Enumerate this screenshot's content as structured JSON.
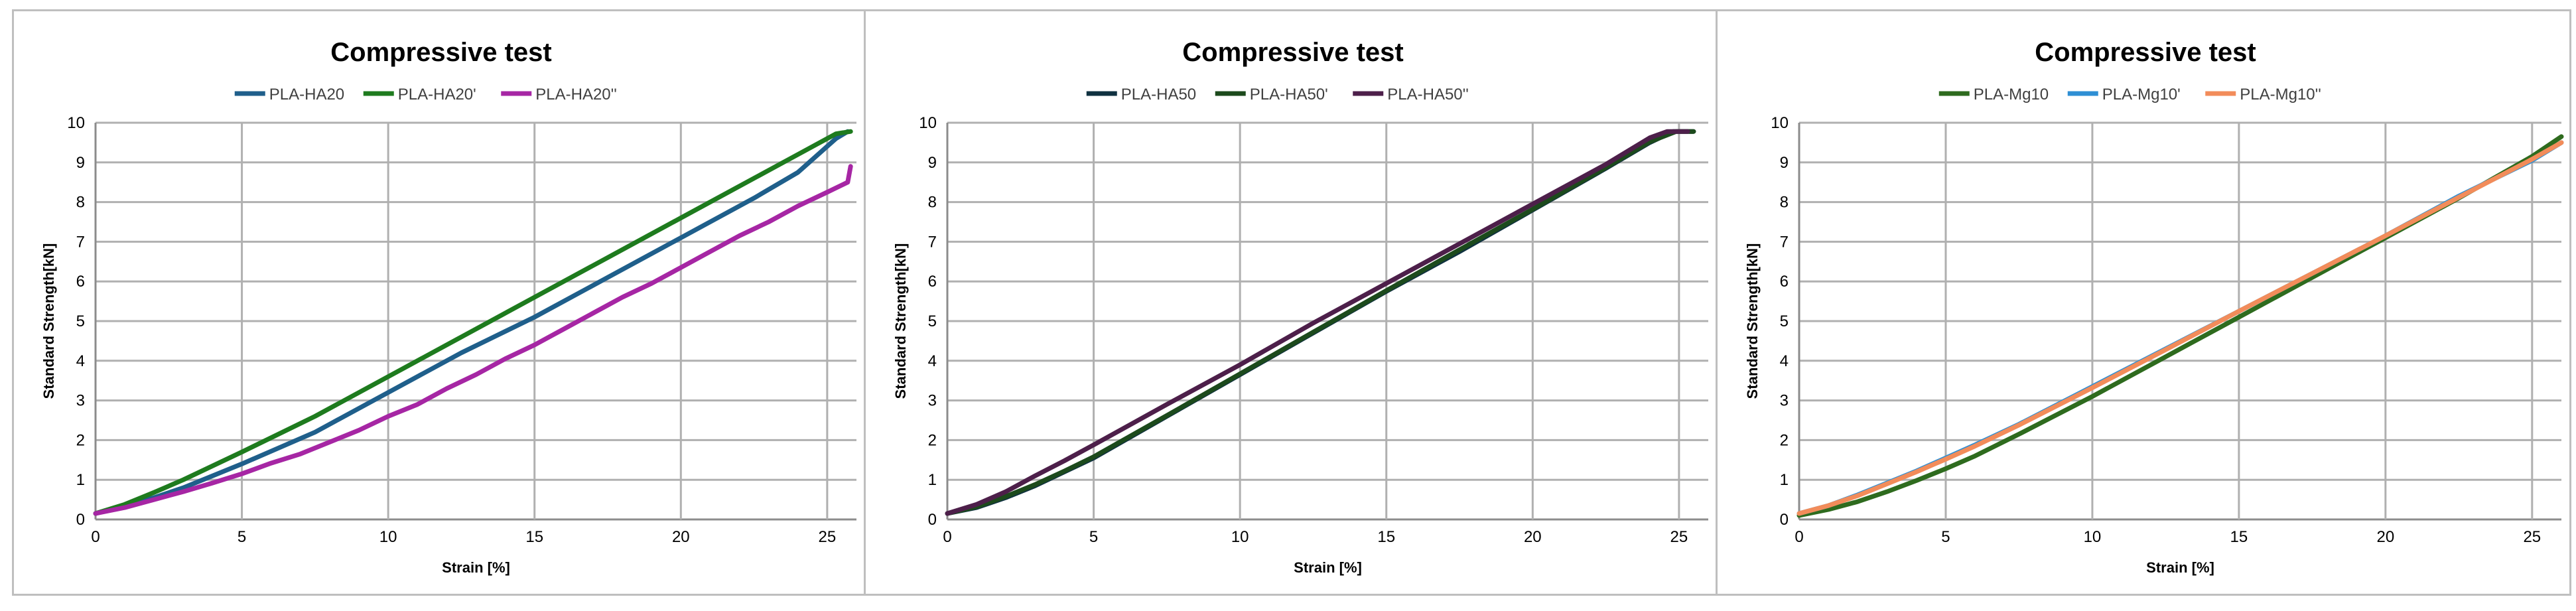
{
  "chart_data": [
    {
      "type": "line",
      "title": "Compressive test",
      "xlabel": "Strain [%]",
      "ylabel": "Standard Strength[kN]",
      "xlim": [
        0,
        26
      ],
      "ylim": [
        0,
        10
      ],
      "xticks": [
        0,
        5,
        10,
        15,
        20,
        25
      ],
      "yticks": [
        0,
        1,
        2,
        3,
        4,
        5,
        6,
        7,
        8,
        9,
        10
      ],
      "grid": true,
      "legend_position": "top",
      "series": [
        {
          "name": "PLA-HA20",
          "color": "#1f5f8b",
          "x": [
            0,
            1,
            2,
            3,
            5,
            7.5,
            10,
            12.5,
            15,
            17.5,
            20,
            22.5,
            24,
            25.3,
            25.7
          ],
          "y": [
            0.15,
            0.33,
            0.55,
            0.8,
            1.4,
            2.2,
            3.2,
            4.2,
            5.1,
            6.1,
            7.1,
            8.1,
            8.75,
            9.6,
            9.78
          ]
        },
        {
          "name": "PLA-HA20'",
          "color": "#1e7b1e",
          "x": [
            0,
            1,
            2,
            3,
            5,
            7.5,
            10,
            12.5,
            15,
            17.5,
            20,
            22.5,
            24,
            25.3,
            25.8
          ],
          "y": [
            0.15,
            0.38,
            0.68,
            1.0,
            1.7,
            2.6,
            3.6,
            4.6,
            5.6,
            6.6,
            7.6,
            8.6,
            9.2,
            9.72,
            9.78
          ]
        },
        {
          "name": "PLA-HA20''",
          "color": "#a626a4",
          "x": [
            0,
            1,
            2,
            3,
            4,
            5,
            6,
            7,
            8,
            9,
            10,
            11,
            12,
            13,
            14,
            15,
            16,
            17,
            18,
            19,
            20,
            21,
            22,
            23,
            24,
            25,
            25.7,
            25.75,
            25.8
          ],
          "y": [
            0.15,
            0.3,
            0.5,
            0.7,
            0.92,
            1.15,
            1.42,
            1.65,
            1.95,
            2.25,
            2.6,
            2.9,
            3.3,
            3.65,
            4.05,
            4.4,
            4.8,
            5.2,
            5.6,
            5.95,
            6.35,
            6.75,
            7.15,
            7.5,
            7.9,
            8.25,
            8.5,
            8.7,
            8.9
          ]
        }
      ]
    },
    {
      "type": "line",
      "title": "Compressive test",
      "xlabel": "Strain [%]",
      "ylabel": "Standard Strength[kN]",
      "xlim": [
        0,
        26
      ],
      "ylim": [
        0,
        10
      ],
      "xticks": [
        0,
        5,
        10,
        15,
        20,
        25
      ],
      "yticks": [
        0,
        1,
        2,
        3,
        4,
        5,
        6,
        7,
        8,
        9,
        10
      ],
      "grid": true,
      "legend_position": "top",
      "series": [
        {
          "name": "PLA-HA50",
          "color": "#0f3140",
          "x": [
            0,
            1,
            2,
            3,
            4,
            5,
            7.5,
            10,
            12.5,
            15,
            17.5,
            20,
            22.5,
            24,
            24.8,
            25.5
          ],
          "y": [
            0.15,
            0.3,
            0.55,
            0.85,
            1.2,
            1.55,
            2.6,
            3.65,
            4.7,
            5.75,
            6.75,
            7.8,
            8.85,
            9.5,
            9.78,
            9.78
          ]
        },
        {
          "name": "PLA-HA50'",
          "color": "#1c4a1c",
          "x": [
            0,
            1,
            2,
            3,
            4,
            5,
            7.5,
            10,
            12.5,
            15,
            17.5,
            20,
            22.5,
            24,
            24.9,
            25.5
          ],
          "y": [
            0.15,
            0.32,
            0.58,
            0.88,
            1.22,
            1.58,
            2.62,
            3.67,
            4.72,
            5.77,
            6.8,
            7.82,
            8.87,
            9.52,
            9.78,
            9.78
          ]
        },
        {
          "name": "PLA-HA50''",
          "color": "#4d1f4a",
          "x": [
            0,
            1,
            2,
            3,
            4,
            5,
            7.5,
            10,
            12.5,
            15,
            17.5,
            20,
            22.5,
            24,
            24.6,
            25.3
          ],
          "y": [
            0.15,
            0.38,
            0.7,
            1.1,
            1.48,
            1.88,
            2.9,
            3.9,
            4.95,
            5.95,
            6.95,
            7.95,
            8.95,
            9.62,
            9.78,
            9.78
          ]
        }
      ]
    },
    {
      "type": "line",
      "title": "Compressive test",
      "xlabel": "Strain [%]",
      "ylabel": "Standard Strength[kN]",
      "xlim": [
        0,
        26
      ],
      "ylim": [
        0,
        10
      ],
      "xticks": [
        0,
        5,
        10,
        15,
        20,
        25
      ],
      "yticks": [
        0,
        1,
        2,
        3,
        4,
        5,
        6,
        7,
        8,
        9,
        10
      ],
      "grid": true,
      "legend_position": "top",
      "series": [
        {
          "name": "PLA-Mg10",
          "color": "#2e6b1e",
          "x": [
            0,
            1,
            2,
            3,
            4,
            5,
            6,
            7.5,
            10,
            12.5,
            15,
            17.5,
            20,
            22.5,
            25,
            26
          ],
          "y": [
            0.1,
            0.25,
            0.45,
            0.7,
            0.98,
            1.28,
            1.6,
            2.15,
            3.1,
            4.1,
            5.1,
            6.1,
            7.1,
            8.1,
            9.15,
            9.65
          ]
        },
        {
          "name": "PLA-Mg10'",
          "color": "#2e8fd4",
          "x": [
            0,
            1,
            2,
            3,
            4,
            5,
            6,
            7.5,
            10,
            12.5,
            15,
            17.5,
            20,
            22.5,
            25,
            26
          ],
          "y": [
            0.15,
            0.35,
            0.62,
            0.92,
            1.22,
            1.55,
            1.88,
            2.4,
            3.35,
            4.3,
            5.25,
            6.2,
            7.15,
            8.15,
            9.05,
            9.5
          ]
        },
        {
          "name": "PLA-Mg10''",
          "color": "#f28c5a",
          "x": [
            0,
            1,
            2,
            3,
            4,
            5,
            6,
            7.5,
            10,
            12.5,
            15,
            17.5,
            20,
            22.5,
            25,
            26
          ],
          "y": [
            0.15,
            0.35,
            0.6,
            0.9,
            1.2,
            1.52,
            1.85,
            2.38,
            3.32,
            4.28,
            5.25,
            6.2,
            7.15,
            8.12,
            9.08,
            9.5
          ]
        }
      ]
    }
  ]
}
